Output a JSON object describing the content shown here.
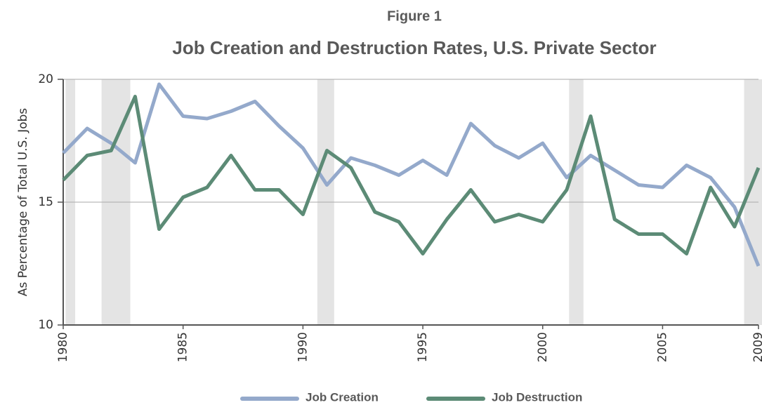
{
  "chart_data": {
    "type": "line",
    "figure_label": "Figure 1",
    "title": "Job Creation and Destruction Rates, U.S. Private Sector",
    "y_label": "As Percentage of Total U.S. Jobs",
    "x": [
      1980,
      1981,
      1982,
      1983,
      1984,
      1985,
      1986,
      1987,
      1988,
      1989,
      1990,
      1991,
      1992,
      1993,
      1994,
      1995,
      1996,
      1997,
      1998,
      1999,
      2000,
      2001,
      2002,
      2003,
      2004,
      2005,
      2006,
      2007,
      2008,
      2009
    ],
    "series": [
      {
        "name": "Job Creation",
        "color": "#94a9cb",
        "values": [
          17.0,
          18.0,
          17.4,
          16.6,
          19.8,
          18.5,
          18.4,
          18.7,
          19.1,
          18.1,
          17.2,
          15.7,
          16.8,
          16.5,
          16.1,
          16.7,
          16.1,
          18.2,
          17.3,
          16.8,
          17.4,
          16.0,
          16.9,
          16.3,
          15.7,
          15.6,
          16.5,
          16.0,
          14.8,
          12.4
        ]
      },
      {
        "name": "Job Destruction",
        "color": "#5c8b76",
        "values": [
          15.9,
          16.9,
          17.1,
          19.3,
          13.9,
          15.2,
          15.6,
          16.9,
          15.5,
          15.5,
          14.5,
          17.1,
          16.4,
          14.6,
          14.2,
          12.9,
          14.3,
          15.5,
          14.2,
          14.5,
          14.2,
          15.5,
          18.5,
          14.3,
          13.7,
          13.7,
          12.9,
          15.6,
          14.0,
          16.4
        ]
      }
    ],
    "recessions": [
      [
        1980.1,
        1980.5
      ],
      [
        1981.6,
        1982.8
      ],
      [
        1990.6,
        1991.3
      ],
      [
        2001.1,
        2001.7
      ],
      [
        2008.4,
        2009.2
      ]
    ],
    "recession_color": "#e4e4e4",
    "xlim": [
      1980,
      2009
    ],
    "xticks": [
      1980,
      1985,
      1990,
      1995,
      2000,
      2005,
      2009
    ],
    "ylim": [
      10,
      20
    ],
    "yticks": [
      10,
      15,
      20
    ],
    "grid": true
  }
}
